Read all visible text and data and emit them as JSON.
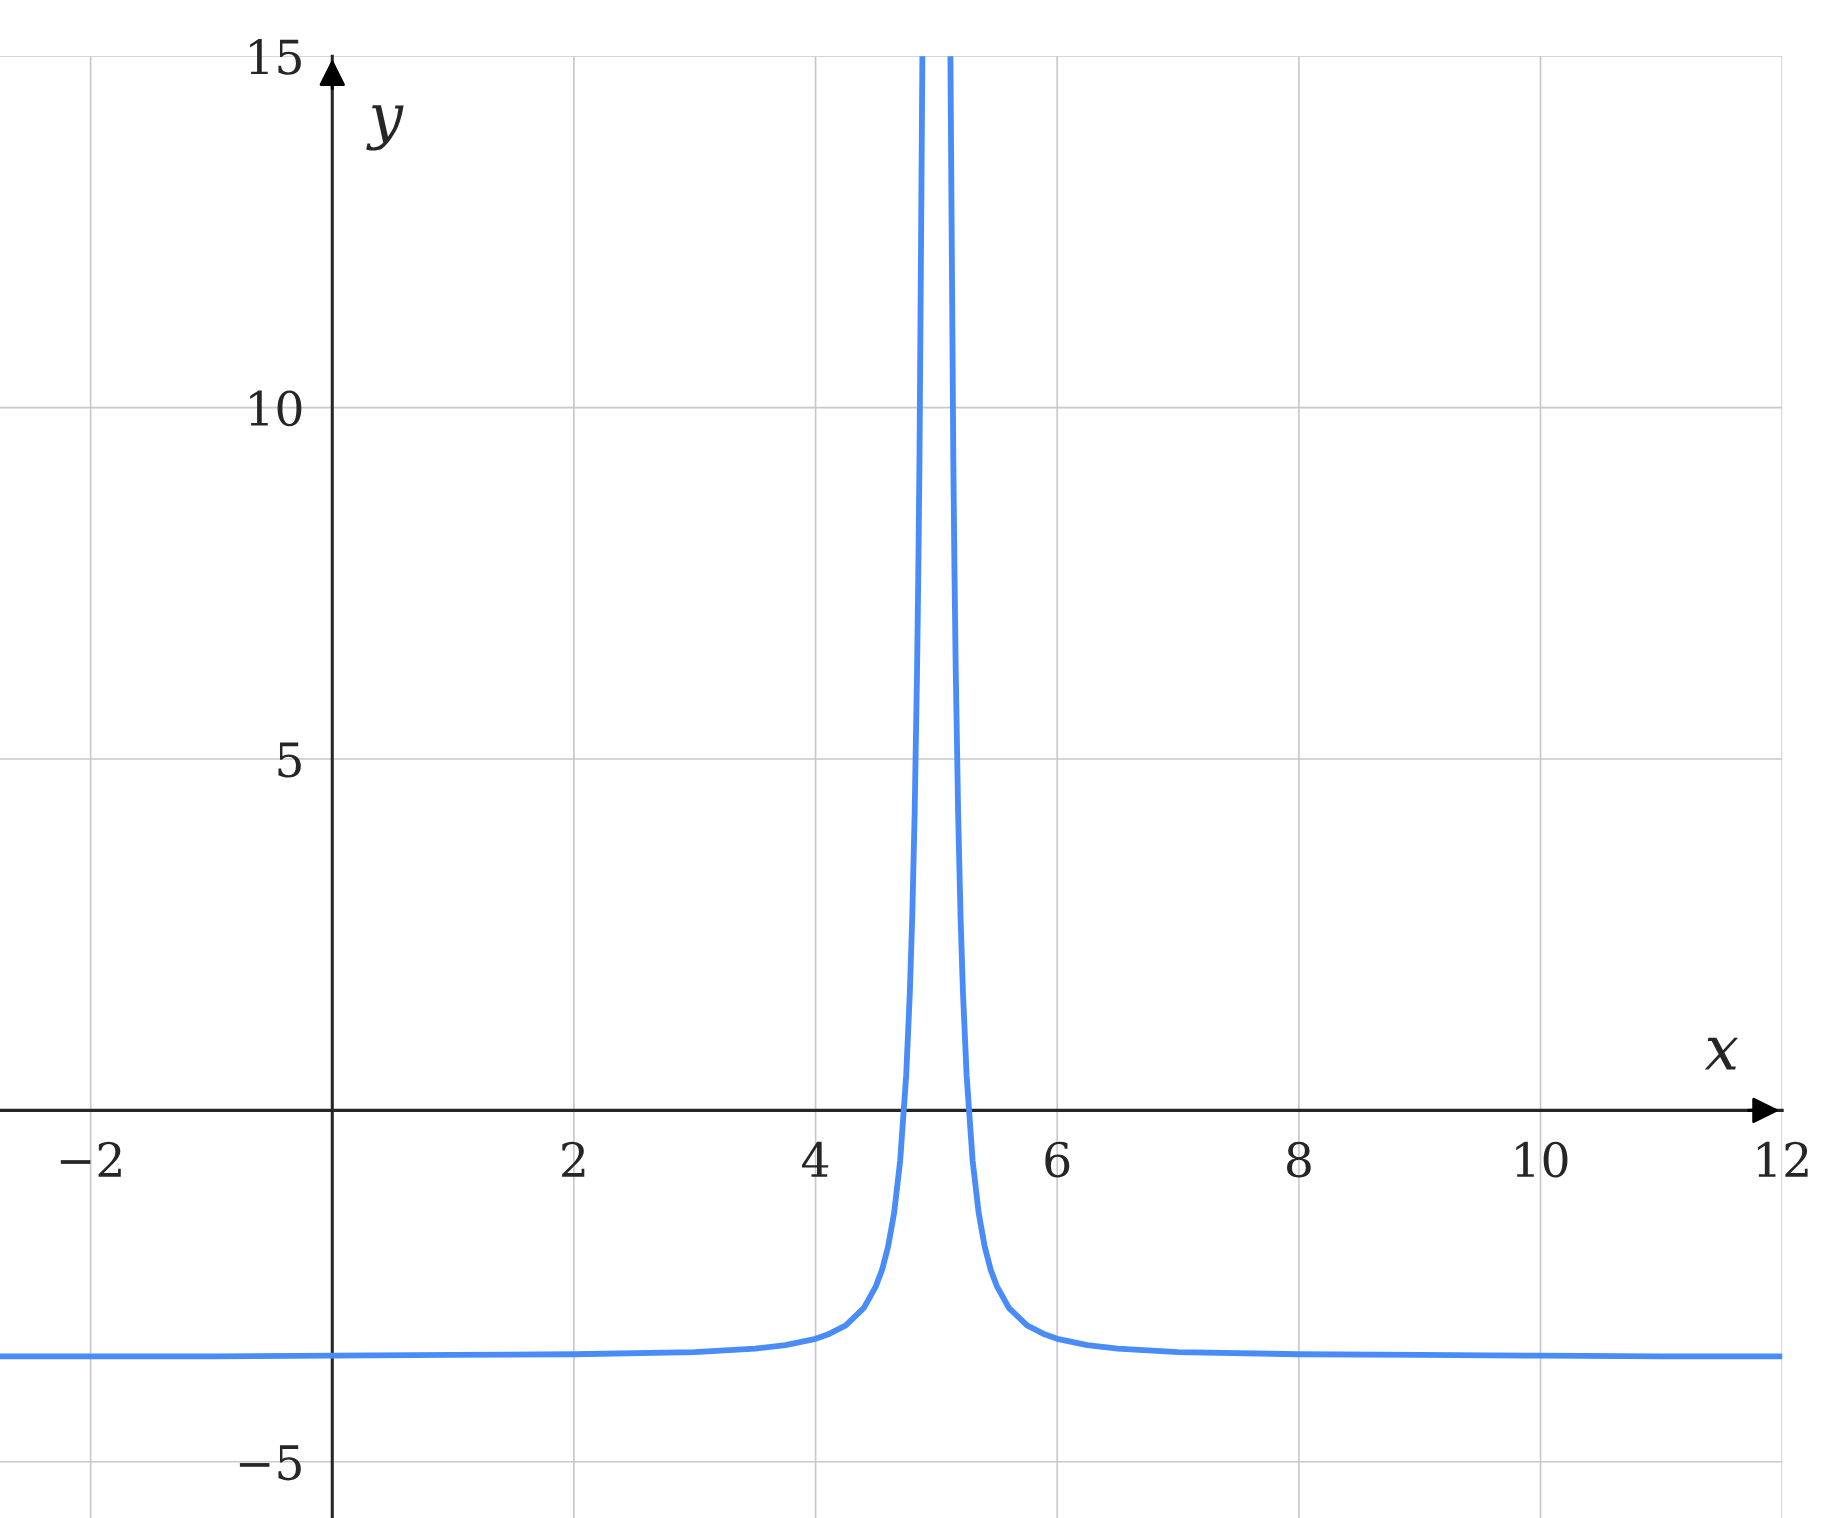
{
  "chart_data": {
    "type": "line",
    "xlabel": "x",
    "ylabel": "y",
    "series": [
      {
        "color": "#4a8cf7",
        "x": [
          -2.75,
          -2,
          -1,
          0,
          1,
          2,
          3,
          3.5,
          3.75,
          4,
          4.1,
          4.25,
          4.4,
          4.5,
          4.55,
          4.6,
          4.65,
          4.7,
          4.75,
          4.78,
          4.8,
          4.82,
          4.84,
          4.85,
          4.86,
          4.884,
          5,
          5.116,
          5.14,
          5.15,
          5.16,
          5.18,
          5.2,
          5.22,
          5.25,
          5.3,
          5.35,
          5.4,
          5.45,
          5.5,
          5.6,
          5.75,
          5.9,
          6,
          6.25,
          6.5,
          7,
          8,
          9,
          10,
          11,
          12
        ],
        "values": [
          -3.5,
          -3.5,
          -3.5,
          -3.49,
          -3.48,
          -3.47,
          -3.44,
          -3.39,
          -3.34,
          -3.25,
          -3.19,
          -3.06,
          -2.81,
          -2.5,
          -2.27,
          -1.94,
          -1.46,
          -0.72,
          0.5,
          1.67,
          2.75,
          4.22,
          6.27,
          7.6,
          9.26,
          15,
          null,
          15,
          9.26,
          7.6,
          6.27,
          4.22,
          2.75,
          1.67,
          0.5,
          -0.72,
          -1.46,
          -1.94,
          -2.27,
          -2.5,
          -2.81,
          -3.06,
          -3.19,
          -3.25,
          -3.34,
          -3.39,
          -3.44,
          -3.47,
          -3.48,
          -3.49,
          -3.5,
          -3.5
        ]
      }
    ],
    "xlim": [
      -2.75,
      12
    ],
    "ylim": [
      -5.8,
      15
    ],
    "xticks": [
      {
        "value": -2,
        "label": "−2"
      },
      2,
      4,
      6,
      8,
      10,
      12
    ],
    "yticks": [
      {
        "value": -5,
        "label": "−5"
      },
      5,
      10,
      15
    ],
    "grid": true,
    "marker": "none",
    "line_style": "solid",
    "legend": false
  }
}
